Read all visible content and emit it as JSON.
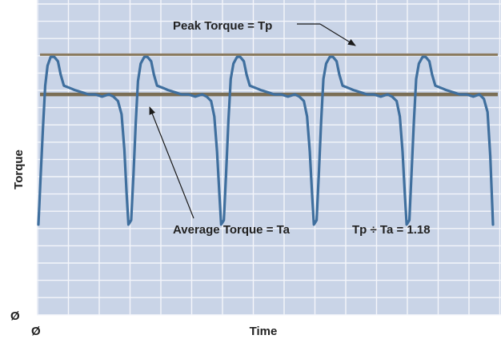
{
  "chart_data": {
    "type": "line",
    "title": "",
    "xlabel": "Time",
    "ylabel": "Torque",
    "x_origin_label": "Ø",
    "y_origin_label": "Ø",
    "ylim": [
      0,
      1.37
    ],
    "xlim": [
      0,
      100
    ],
    "grid": true,
    "reference_lines": [
      {
        "name": "peak",
        "label": "Peak Torque = Tp",
        "y": 1.18,
        "color": "#8a7a5e"
      },
      {
        "name": "average",
        "label": "Average Torque = Ta",
        "y": 1.0,
        "color": "#7a6e55"
      }
    ],
    "annotations": [
      {
        "text": "Tp ÷ Ta = 1.18"
      }
    ],
    "series": [
      {
        "color": "#3f6f9e",
        "points": [
          [
            0.0,
            0.41
          ],
          [
            0.5,
            0.63
          ],
          [
            1.0,
            0.85
          ],
          [
            1.5,
            1.04
          ],
          [
            2.0,
            1.13
          ],
          [
            2.7,
            1.17
          ],
          [
            3.5,
            1.17
          ],
          [
            4.3,
            1.15
          ],
          [
            4.9,
            1.09
          ],
          [
            5.6,
            1.04
          ],
          [
            6.8,
            1.03
          ],
          [
            8.0,
            1.02
          ],
          [
            9.5,
            1.01
          ],
          [
            11.0,
            1.0
          ],
          [
            12.5,
            1.0
          ],
          [
            14.0,
            0.99
          ],
          [
            15.5,
            1.0
          ],
          [
            16.5,
            0.99
          ],
          [
            17.5,
            0.97
          ],
          [
            18.3,
            0.91
          ],
          [
            18.9,
            0.75
          ],
          [
            19.4,
            0.55
          ],
          [
            19.8,
            0.41
          ],
          [
            20.4,
            0.43
          ],
          [
            20.9,
            0.63
          ],
          [
            21.4,
            0.87
          ],
          [
            21.9,
            1.06
          ],
          [
            22.5,
            1.14
          ],
          [
            23.3,
            1.17
          ],
          [
            24.0,
            1.17
          ],
          [
            24.8,
            1.15
          ],
          [
            25.4,
            1.09
          ],
          [
            26.1,
            1.04
          ],
          [
            27.3,
            1.03
          ],
          [
            28.5,
            1.02
          ],
          [
            30.0,
            1.01
          ],
          [
            31.5,
            1.0
          ],
          [
            33.0,
            1.0
          ],
          [
            34.5,
            0.99
          ],
          [
            36.0,
            1.0
          ],
          [
            37.0,
            0.99
          ],
          [
            38.0,
            0.97
          ],
          [
            38.7,
            0.9
          ],
          [
            39.3,
            0.74
          ],
          [
            39.8,
            0.55
          ],
          [
            40.2,
            0.41
          ],
          [
            40.8,
            0.43
          ],
          [
            41.3,
            0.65
          ],
          [
            41.8,
            0.88
          ],
          [
            42.3,
            1.07
          ],
          [
            42.9,
            1.14
          ],
          [
            43.7,
            1.17
          ],
          [
            44.4,
            1.17
          ],
          [
            45.2,
            1.15
          ],
          [
            45.8,
            1.09
          ],
          [
            46.5,
            1.04
          ],
          [
            47.7,
            1.03
          ],
          [
            48.9,
            1.02
          ],
          [
            50.4,
            1.01
          ],
          [
            51.9,
            1.0
          ],
          [
            53.4,
            1.0
          ],
          [
            54.9,
            0.99
          ],
          [
            56.4,
            1.0
          ],
          [
            57.4,
            0.99
          ],
          [
            58.4,
            0.97
          ],
          [
            59.1,
            0.9
          ],
          [
            59.7,
            0.74
          ],
          [
            60.2,
            0.55
          ],
          [
            60.6,
            0.41
          ],
          [
            61.2,
            0.43
          ],
          [
            61.7,
            0.65
          ],
          [
            62.2,
            0.88
          ],
          [
            62.7,
            1.07
          ],
          [
            63.3,
            1.14
          ],
          [
            64.1,
            1.17
          ],
          [
            64.8,
            1.17
          ],
          [
            65.6,
            1.15
          ],
          [
            66.2,
            1.09
          ],
          [
            66.9,
            1.04
          ],
          [
            68.1,
            1.03
          ],
          [
            69.3,
            1.02
          ],
          [
            70.8,
            1.01
          ],
          [
            72.3,
            1.0
          ],
          [
            73.8,
            1.0
          ],
          [
            75.3,
            0.99
          ],
          [
            76.8,
            1.0
          ],
          [
            77.8,
            0.99
          ],
          [
            78.8,
            0.97
          ],
          [
            79.5,
            0.9
          ],
          [
            80.1,
            0.74
          ],
          [
            80.6,
            0.55
          ],
          [
            81.0,
            0.41
          ],
          [
            81.6,
            0.43
          ],
          [
            82.1,
            0.65
          ],
          [
            82.6,
            0.88
          ],
          [
            83.1,
            1.07
          ],
          [
            83.7,
            1.14
          ],
          [
            84.5,
            1.17
          ],
          [
            85.2,
            1.17
          ],
          [
            86.0,
            1.15
          ],
          [
            86.6,
            1.09
          ],
          [
            87.3,
            1.04
          ],
          [
            88.5,
            1.03
          ],
          [
            89.7,
            1.02
          ],
          [
            91.2,
            1.01
          ],
          [
            92.7,
            1.0
          ],
          [
            94.2,
            1.0
          ],
          [
            95.7,
            0.99
          ],
          [
            97.0,
            1.0
          ],
          [
            98.0,
            0.98
          ],
          [
            98.8,
            0.92
          ],
          [
            99.4,
            0.72
          ],
          [
            100.0,
            0.41
          ]
        ]
      }
    ]
  },
  "colors": {
    "plot_background": "#c9d4e7",
    "grid": "#f4f6fb",
    "series": "#3f6f9e",
    "peak_line": "#8a7a5e",
    "average_line": "#7a6e55",
    "arrow": "#1a1a1a"
  }
}
